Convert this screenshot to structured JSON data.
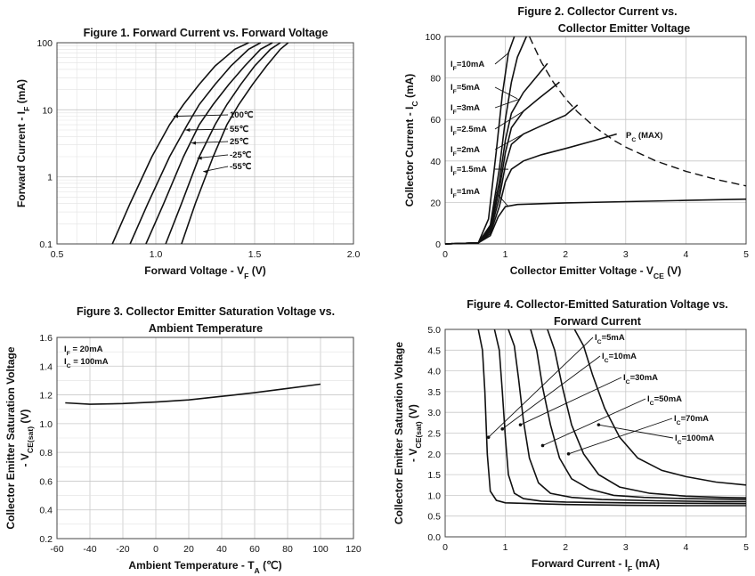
{
  "chart_data": [
    {
      "id": "fig1",
      "type": "line",
      "title": "Figure 1. Forward Current vs. Forward Voltage",
      "xlabel": "Forward Voltage - V",
      "xlabel_sub": "F",
      "xlabel_unit": " (V)",
      "ylabel": "Forward Current - I",
      "ylabel_sub": "F",
      "ylabel_unit": " (mA)",
      "xlim": [
        0.5,
        2.0
      ],
      "ylim": [
        0.1,
        100
      ],
      "yscale": "log",
      "xticks": [
        "0.5",
        "1.0",
        "1.5",
        "2.0"
      ],
      "xtick_values": [
        0.5,
        1.0,
        1.5,
        2.0
      ],
      "yticks": [
        "0.1",
        "1",
        "10",
        "100"
      ],
      "ytick_values": [
        0.1,
        1,
        10,
        100
      ],
      "series": [
        {
          "name": "100℃",
          "x": [
            0.78,
            0.87,
            0.98,
            1.07,
            1.14,
            1.22,
            1.3,
            1.4,
            1.47
          ],
          "y": [
            0.1,
            0.4,
            2,
            6,
            12,
            24,
            45,
            80,
            100
          ]
        },
        {
          "name": "55℃",
          "x": [
            0.87,
            0.96,
            1.07,
            1.16,
            1.22,
            1.3,
            1.38,
            1.47,
            1.53
          ],
          "y": [
            0.1,
            0.4,
            2,
            6,
            12,
            24,
            45,
            80,
            100
          ]
        },
        {
          "name": "25℃",
          "x": [
            0.95,
            1.04,
            1.14,
            1.22,
            1.29,
            1.37,
            1.45,
            1.53,
            1.59
          ],
          "y": [
            0.1,
            0.4,
            2,
            6,
            12,
            24,
            45,
            80,
            100
          ]
        },
        {
          "name": "-25℃",
          "x": [
            1.05,
            1.13,
            1.22,
            1.3,
            1.36,
            1.43,
            1.5,
            1.58,
            1.63
          ],
          "y": [
            0.1,
            0.4,
            2,
            6,
            12,
            24,
            45,
            80,
            100
          ]
        },
        {
          "name": "-55℃",
          "x": [
            1.13,
            1.2,
            1.29,
            1.36,
            1.42,
            1.49,
            1.56,
            1.63,
            1.67
          ],
          "y": [
            0.1,
            0.4,
            2,
            6,
            12,
            24,
            45,
            80,
            100
          ]
        }
      ],
      "annotations": [
        {
          "text": "100",
          "unit": "℃",
          "at_x": 1.09,
          "at_y": 8
        },
        {
          "text": "55",
          "unit": "℃",
          "at_x": 1.15,
          "at_y": 5
        },
        {
          "text": "25",
          "unit": "℃",
          "at_x": 1.18,
          "at_y": 3.2
        },
        {
          "text": "-25",
          "unit": "℃",
          "at_x": 1.21,
          "at_y": 1.9
        },
        {
          "text": "-55",
          "unit": "℃",
          "at_x": 1.24,
          "at_y": 1.2
        }
      ]
    },
    {
      "id": "fig2",
      "type": "line",
      "title": "Figure 2. Collector Current vs.",
      "title2": "Collector Emitter Voltage",
      "xlabel": "Collector Emitter Voltage - V",
      "xlabel_sub": "CE",
      "xlabel_unit": " (V)",
      "ylabel": "Collector Current - I",
      "ylabel_sub": "C",
      "ylabel_unit": " (mA)",
      "xlim": [
        0,
        5
      ],
      "ylim": [
        0,
        100
      ],
      "xticks": [
        "0",
        "1",
        "2",
        "3",
        "4",
        "5"
      ],
      "xtick_values": [
        0,
        1,
        2,
        3,
        4,
        5
      ],
      "yticks": [
        "0",
        "20",
        "40",
        "60",
        "80",
        "100"
      ],
      "ytick_values": [
        0,
        20,
        40,
        60,
        80,
        100
      ],
      "series": [
        {
          "name": "IF=1mA",
          "x": [
            0,
            0.55,
            0.75,
            0.88,
            1.0,
            1.2,
            2,
            3,
            4,
            5
          ],
          "y": [
            0,
            0.5,
            4,
            13,
            18,
            19,
            19.8,
            20.4,
            21,
            21.6
          ]
        },
        {
          "name": "IF=1.5mA",
          "x": [
            0,
            0.55,
            0.75,
            0.9,
            1.0,
            1.1,
            1.3,
            1.6,
            2,
            2.5,
            2.85
          ],
          "y": [
            0,
            0.5,
            5,
            18,
            30,
            36,
            40,
            43,
            46,
            50,
            53
          ]
        },
        {
          "name": "IF=2mA",
          "x": [
            0,
            0.55,
            0.75,
            0.9,
            1.0,
            1.1,
            1.3,
            1.6,
            2.0,
            2.2
          ],
          "y": [
            0,
            0.5,
            6,
            22,
            38,
            48,
            53,
            57,
            62,
            67
          ]
        },
        {
          "name": "IF=2.5mA",
          "x": [
            0,
            0.55,
            0.75,
            0.9,
            1.0,
            1.1,
            1.3,
            1.55,
            1.9
          ],
          "y": [
            0,
            0.5,
            7,
            26,
            44,
            56,
            64,
            70,
            78
          ]
        },
        {
          "name": "IF=3mA",
          "x": [
            0,
            0.55,
            0.75,
            0.9,
            1.0,
            1.1,
            1.3,
            1.5,
            1.7
          ],
          "y": [
            0,
            0.5,
            8,
            30,
            50,
            63,
            73,
            80,
            87
          ]
        },
        {
          "name": "IF=5mA",
          "x": [
            0,
            0.55,
            0.75,
            0.9,
            1.0,
            1.1,
            1.2,
            1.35
          ],
          "y": [
            0,
            0.5,
            9,
            36,
            60,
            78,
            90,
            100
          ]
        },
        {
          "name": "IF=10mA",
          "x": [
            0,
            0.55,
            0.72,
            0.85,
            0.95,
            1.05,
            1.15
          ],
          "y": [
            0,
            0.5,
            12,
            45,
            72,
            92,
            100
          ]
        },
        {
          "name": "Pc(MAX)",
          "style": "dashed",
          "x": [
            1.4,
            1.6,
            1.8,
            2.0,
            2.2,
            2.5,
            2.8,
            3.0,
            3.5,
            4.0,
            4.5,
            5.0
          ],
          "y": [
            100,
            87.5,
            77.8,
            70,
            63.6,
            56,
            50,
            46.7,
            40,
            35,
            31.1,
            28
          ]
        }
      ],
      "annotations": [
        {
          "text": "I",
          "sub": "F",
          "tail": "=10mA",
          "at_x": 0.05,
          "at_y": 85
        },
        {
          "text": "I",
          "sub": "F",
          "tail": "=5mA",
          "at_x": 0.05,
          "at_y": 75
        },
        {
          "text": "I",
          "sub": "F",
          "tail": "=3mA",
          "at_x": 0.05,
          "at_y": 65
        },
        {
          "text": "I",
          "sub": "F",
          "tail": "=2.5mA",
          "at_x": 0.05,
          "at_y": 55
        },
        {
          "text": "I",
          "sub": "F",
          "tail": "=2mA",
          "at_x": 0.05,
          "at_y": 45
        },
        {
          "text": "I",
          "sub": "F",
          "tail": "=1.5mA",
          "at_x": 0.05,
          "at_y": 35
        },
        {
          "text": "I",
          "sub": "F",
          "tail": "=1mA",
          "at_x": 0.05,
          "at_y": 24
        },
        {
          "text": "P",
          "sub": "C",
          "tail": " (MAX)",
          "at_x": 3.0,
          "at_y": 52
        }
      ]
    },
    {
      "id": "fig3",
      "type": "line",
      "title": "Figure 3. Collector Emitter Saturation Voltage vs.",
      "title2": "Ambient Temperature",
      "xlabel": "Ambient Temperature - T",
      "xlabel_sub": "A",
      "xlabel_unit": " (℃)",
      "ylabel": "Collector Emitter Saturation Voltage",
      "ylabel2": "- V",
      "ylabel2_sub": "CE(sat)",
      "ylabel2_unit": " (V)",
      "xlim": [
        -60,
        120
      ],
      "ylim": [
        0.2,
        1.6
      ],
      "xticks": [
        "-60",
        "-40",
        "-20",
        "0",
        "20",
        "40",
        "60",
        "80",
        "100",
        "120"
      ],
      "xtick_values": [
        -60,
        -40,
        -20,
        0,
        20,
        40,
        60,
        80,
        100,
        120
      ],
      "yticks": [
        "0.2",
        "0.4",
        "0.6",
        "0.8",
        "1.0",
        "1.2",
        "1.4",
        "1.6"
      ],
      "ytick_values": [
        0.2,
        0.4,
        0.6,
        0.8,
        1.0,
        1.2,
        1.4,
        1.6
      ],
      "series": [
        {
          "name": "IF=20mA, IC=100mA",
          "x": [
            -55,
            -40,
            -20,
            0,
            20,
            40,
            60,
            80,
            100
          ],
          "y": [
            1.145,
            1.135,
            1.14,
            1.15,
            1.165,
            1.19,
            1.215,
            1.245,
            1.275
          ]
        }
      ],
      "annotations": [
        {
          "text": "I",
          "sub": "F",
          "tail": " = 20mA"
        },
        {
          "text": "I",
          "sub": "C",
          "tail": " = 100mA"
        }
      ]
    },
    {
      "id": "fig4",
      "type": "line",
      "title": "Figure 4. Collector-Emitted Saturation Voltage vs.",
      "title2": "Forward Current",
      "xlabel": "Forward Current - I",
      "xlabel_sub": "F",
      "xlabel_unit": " (mA)",
      "ylabel": "Collector Emitter Saturation Voltage",
      "ylabel2": "- V",
      "ylabel2_sub": "CE(sat)",
      "ylabel2_unit": " (V)",
      "xlim": [
        0,
        5
      ],
      "ylim": [
        0.0,
        5.0
      ],
      "xticks": [
        "0",
        "1",
        "2",
        "3",
        "4",
        "5"
      ],
      "xtick_values": [
        0,
        1,
        2,
        3,
        4,
        5
      ],
      "yticks": [
        "0.0",
        "0.5",
        "1.0",
        "1.5",
        "2.0",
        "2.5",
        "3.0",
        "3.5",
        "4.0",
        "4.5",
        "5.0"
      ],
      "ytick_values": [
        0,
        0.5,
        1,
        1.5,
        2,
        2.5,
        3,
        3.5,
        4,
        4.5,
        5
      ],
      "series": [
        {
          "name": "IC=5mA",
          "x": [
            0.55,
            0.62,
            0.66,
            0.7,
            0.75,
            0.85,
            1.0,
            2,
            3,
            4,
            5
          ],
          "y": [
            5,
            4.5,
            3.5,
            2.0,
            1.1,
            0.88,
            0.82,
            0.78,
            0.76,
            0.75,
            0.75
          ]
        },
        {
          "name": "IC=10mA",
          "x": [
            0.82,
            0.9,
            0.95,
            1.0,
            1.05,
            1.15,
            1.3,
            1.6,
            2,
            3,
            4,
            5
          ],
          "y": [
            5,
            4.5,
            3.5,
            2.4,
            1.5,
            1.05,
            0.92,
            0.86,
            0.84,
            0.82,
            0.81,
            0.8
          ]
        },
        {
          "name": "IC=30mA",
          "x": [
            1.05,
            1.15,
            1.22,
            1.3,
            1.4,
            1.55,
            1.75,
            2.1,
            2.6,
            3.5,
            4.5,
            5
          ],
          "y": [
            5,
            4.6,
            3.8,
            2.8,
            1.9,
            1.3,
            1.05,
            0.95,
            0.9,
            0.87,
            0.85,
            0.85
          ]
        },
        {
          "name": "IC=50mA",
          "x": [
            1.42,
            1.52,
            1.62,
            1.75,
            1.9,
            2.1,
            2.4,
            2.8,
            3.3,
            4,
            5
          ],
          "y": [
            5,
            4.5,
            3.6,
            2.7,
            1.9,
            1.4,
            1.15,
            1.0,
            0.95,
            0.92,
            0.9
          ]
        },
        {
          "name": "IC=70mA",
          "x": [
            1.7,
            1.82,
            1.95,
            2.1,
            2.3,
            2.55,
            2.9,
            3.4,
            4,
            4.6,
            5
          ],
          "y": [
            5,
            4.5,
            3.6,
            2.7,
            2.0,
            1.5,
            1.2,
            1.05,
            0.98,
            0.95,
            0.94
          ]
        },
        {
          "name": "IC=100mA",
          "x": [
            2.15,
            2.3,
            2.45,
            2.65,
            2.9,
            3.2,
            3.6,
            4.0,
            4.5,
            5.0
          ],
          "y": [
            5,
            4.6,
            3.9,
            3.1,
            2.4,
            1.9,
            1.6,
            1.45,
            1.32,
            1.25
          ]
        }
      ],
      "annotations": [
        {
          "text": "I",
          "sub": "C",
          "tail": "=5mA"
        },
        {
          "text": "I",
          "sub": "C",
          "tail": "=10mA"
        },
        {
          "text": "I",
          "sub": "C",
          "tail": "=30mA"
        },
        {
          "text": "I",
          "sub": "C",
          "tail": "=50mA"
        },
        {
          "text": "I",
          "sub": "C",
          "tail": "=70mA"
        },
        {
          "text": "I",
          "sub": "C",
          "tail": "=100mA"
        }
      ]
    }
  ]
}
